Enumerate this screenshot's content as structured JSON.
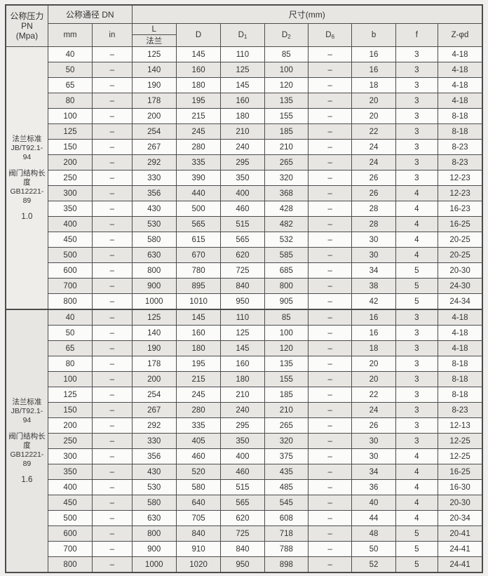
{
  "colors": {
    "page_bg": "#f0efed",
    "header_bg": "#e7e6e3",
    "stripe_bg": "#e7e6e3",
    "row_bg": "#fbfbfa",
    "border": "#4c4c4c",
    "text": "#333333"
  },
  "header": {
    "pn": "公称压力\nPN\n(Mpa)",
    "dn": "公称通径 DN",
    "size": "尺寸(mm)",
    "dn_units": [
      "mm",
      "in"
    ],
    "l_top": "L",
    "l_bottom": "法兰",
    "cols": {
      "d": {
        "main": "D",
        "sub": ""
      },
      "d1": {
        "main": "D",
        "sub": "1"
      },
      "d2": {
        "main": "D",
        "sub": "2"
      },
      "d6": {
        "main": "D",
        "sub": "6"
      },
      "b": {
        "main": "b",
        "sub": ""
      },
      "f": {
        "main": "f",
        "sub": ""
      },
      "z": {
        "main": "Z-φd",
        "sub": ""
      }
    }
  },
  "sections": [
    {
      "flange_standard": [
        "法兰标准",
        "JB/T92.1-94"
      ],
      "valve_length_standard": [
        "阀门结构长度",
        "GB12221-89"
      ],
      "pn_value": "1.0",
      "rows": [
        [
          "40",
          "–",
          "125",
          "145",
          "110",
          "85",
          "–",
          "16",
          "3",
          "4-18"
        ],
        [
          "50",
          "–",
          "140",
          "160",
          "125",
          "100",
          "–",
          "16",
          "3",
          "4-18"
        ],
        [
          "65",
          "–",
          "190",
          "180",
          "145",
          "120",
          "–",
          "18",
          "3",
          "4-18"
        ],
        [
          "80",
          "–",
          "178",
          "195",
          "160",
          "135",
          "–",
          "20",
          "3",
          "4-18"
        ],
        [
          "100",
          "–",
          "200",
          "215",
          "180",
          "155",
          "–",
          "20",
          "3",
          "8-18"
        ],
        [
          "125",
          "–",
          "254",
          "245",
          "210",
          "185",
          "–",
          "22",
          "3",
          "8-18"
        ],
        [
          "150",
          "–",
          "267",
          "280",
          "240",
          "210",
          "–",
          "24",
          "3",
          "8-23"
        ],
        [
          "200",
          "–",
          "292",
          "335",
          "295",
          "265",
          "–",
          "24",
          "3",
          "8-23"
        ],
        [
          "250",
          "–",
          "330",
          "390",
          "350",
          "320",
          "–",
          "26",
          "3",
          "12-23"
        ],
        [
          "300",
          "–",
          "356",
          "440",
          "400",
          "368",
          "–",
          "26",
          "4",
          "12-23"
        ],
        [
          "350",
          "–",
          "430",
          "500",
          "460",
          "428",
          "–",
          "28",
          "4",
          "16-23"
        ],
        [
          "400",
          "–",
          "530",
          "565",
          "515",
          "482",
          "–",
          "28",
          "4",
          "16-25"
        ],
        [
          "450",
          "–",
          "580",
          "615",
          "565",
          "532",
          "–",
          "30",
          "4",
          "20-25"
        ],
        [
          "500",
          "–",
          "630",
          "670",
          "620",
          "585",
          "–",
          "30",
          "4",
          "20-25"
        ],
        [
          "600",
          "–",
          "800",
          "780",
          "725",
          "685",
          "–",
          "34",
          "5",
          "20-30"
        ],
        [
          "700",
          "–",
          "900",
          "895",
          "840",
          "800",
          "–",
          "38",
          "5",
          "24-30"
        ],
        [
          "800",
          "–",
          "1000",
          "1010",
          "950",
          "905",
          "–",
          "42",
          "5",
          "24-34"
        ]
      ]
    },
    {
      "flange_standard": [
        "法兰标准",
        "JB/T92.1-94"
      ],
      "valve_length_standard": [
        "阀门结构长度",
        "GB12221-89"
      ],
      "pn_value": "1.6",
      "rows": [
        [
          "40",
          "–",
          "125",
          "145",
          "110",
          "85",
          "–",
          "16",
          "3",
          "4-18"
        ],
        [
          "50",
          "–",
          "140",
          "160",
          "125",
          "100",
          "–",
          "16",
          "3",
          "4-18"
        ],
        [
          "65",
          "–",
          "190",
          "180",
          "145",
          "120",
          "–",
          "18",
          "3",
          "4-18"
        ],
        [
          "80",
          "–",
          "178",
          "195",
          "160",
          "135",
          "–",
          "20",
          "3",
          "8-18"
        ],
        [
          "100",
          "–",
          "200",
          "215",
          "180",
          "155",
          "–",
          "20",
          "3",
          "8-18"
        ],
        [
          "125",
          "–",
          "254",
          "245",
          "210",
          "185",
          "–",
          "22",
          "3",
          "8-18"
        ],
        [
          "150",
          "–",
          "267",
          "280",
          "240",
          "210",
          "–",
          "24",
          "3",
          "8-23"
        ],
        [
          "200",
          "–",
          "292",
          "335",
          "295",
          "265",
          "–",
          "26",
          "3",
          "12-13"
        ],
        [
          "250",
          "–",
          "330",
          "405",
          "350",
          "320",
          "–",
          "30",
          "3",
          "12-25"
        ],
        [
          "300",
          "–",
          "356",
          "460",
          "400",
          "375",
          "–",
          "30",
          "4",
          "12-25"
        ],
        [
          "350",
          "–",
          "430",
          "520",
          "460",
          "435",
          "–",
          "34",
          "4",
          "16-25"
        ],
        [
          "400",
          "–",
          "530",
          "580",
          "515",
          "485",
          "–",
          "36",
          "4",
          "16-30"
        ],
        [
          "450",
          "–",
          "580",
          "640",
          "565",
          "545",
          "–",
          "40",
          "4",
          "20-30"
        ],
        [
          "500",
          "–",
          "630",
          "705",
          "620",
          "608",
          "–",
          "44",
          "4",
          "20-34"
        ],
        [
          "600",
          "–",
          "800",
          "840",
          "725",
          "718",
          "–",
          "48",
          "5",
          "20-41"
        ],
        [
          "700",
          "–",
          "900",
          "910",
          "840",
          "788",
          "–",
          "50",
          "5",
          "24-41"
        ],
        [
          "800",
          "–",
          "1000",
          "1020",
          "950",
          "898",
          "–",
          "52",
          "5",
          "24-41"
        ]
      ]
    }
  ]
}
